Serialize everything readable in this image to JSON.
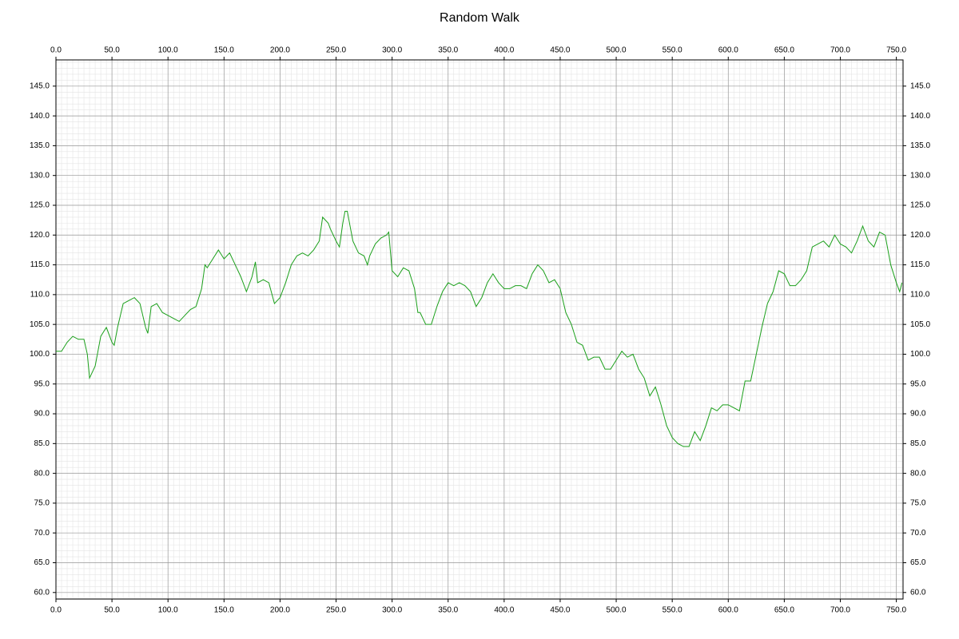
{
  "chart_data": {
    "type": "line",
    "title": "Random Walk",
    "x": [
      0,
      5,
      10,
      15,
      20,
      25,
      28,
      30,
      35,
      40,
      45,
      50,
      52,
      55,
      60,
      65,
      70,
      75,
      80,
      82,
      85,
      90,
      95,
      100,
      105,
      110,
      115,
      120,
      125,
      130,
      133,
      135,
      140,
      145,
      150,
      155,
      160,
      165,
      170,
      175,
      178,
      180,
      185,
      190,
      195,
      200,
      205,
      210,
      215,
      220,
      225,
      230,
      235,
      238,
      243,
      245,
      250,
      253,
      256,
      258,
      260,
      263,
      265,
      270,
      275,
      278,
      280,
      285,
      290,
      295,
      297,
      300,
      305,
      310,
      315,
      320,
      323,
      325,
      330,
      335,
      340,
      345,
      350,
      355,
      360,
      365,
      370,
      375,
      380,
      385,
      390,
      395,
      400,
      405,
      410,
      415,
      420,
      425,
      430,
      435,
      440,
      445,
      450,
      455,
      460,
      465,
      470,
      475,
      480,
      485,
      490,
      495,
      500,
      505,
      510,
      515,
      520,
      525,
      530,
      535,
      540,
      545,
      550,
      555,
      560,
      565,
      570,
      575,
      580,
      585,
      590,
      595,
      600,
      605,
      610,
      615,
      620,
      625,
      630,
      635,
      640,
      645,
      650,
      655,
      660,
      665,
      670,
      675,
      680,
      685,
      690,
      695,
      700,
      705,
      710,
      715,
      720,
      725,
      730,
      735,
      740,
      745,
      750,
      753,
      755
    ],
    "series": [
      {
        "name": "Random Walk",
        "color": "#1a9f1a",
        "values": [
          100.5,
          100.5,
          102,
          103,
          102.5,
          102.5,
          100,
          96,
          98,
          103,
          104.5,
          102,
          101.5,
          104.5,
          108.5,
          109,
          109.5,
          108.5,
          104.5,
          103.5,
          108,
          108.5,
          107,
          106.5,
          106,
          105.5,
          106.5,
          107.5,
          108,
          111,
          115,
          114.5,
          116,
          117.5,
          116,
          117,
          115,
          113,
          110.5,
          113,
          115.5,
          112,
          112.5,
          112,
          108.5,
          109.5,
          112,
          115,
          116.5,
          117,
          116.5,
          117.5,
          119,
          123,
          122,
          121,
          119,
          118,
          122,
          124,
          124,
          121,
          119,
          117,
          116.5,
          115,
          116.5,
          118.5,
          119.5,
          120,
          120.5,
          114,
          113,
          114.5,
          114,
          111,
          107,
          107,
          105,
          105,
          108,
          110.5,
          112,
          111.5,
          112,
          111.5,
          110.5,
          108,
          109.5,
          112,
          113.5,
          112,
          111,
          111,
          111.5,
          111.5,
          111,
          113.5,
          115,
          114,
          112,
          112.5,
          111,
          107,
          105,
          102,
          101.5,
          99,
          99.5,
          99.5,
          97.5,
          97.5,
          99,
          100.5,
          99.5,
          100,
          97.5,
          96,
          93,
          94.5,
          91.5,
          88,
          86,
          85,
          84.5,
          84.5,
          87,
          85.5,
          88,
          91,
          90.5,
          91.5,
          91.5,
          91,
          90.5,
          95.5,
          95.5,
          100,
          104.5,
          108.5,
          110.5,
          114,
          113.5,
          111.5,
          111.5,
          112.5,
          114,
          118,
          118.5,
          119,
          118,
          120,
          118.5,
          118,
          117,
          119,
          121.5,
          119,
          118,
          120.5,
          120,
          115,
          112,
          110.5,
          112
        ]
      }
    ],
    "xlim": [
      0,
      756
    ],
    "ylim": [
      58.9,
      149.4
    ],
    "xticks": [
      {
        "value": 0,
        "label": "0.0"
      },
      {
        "value": 50,
        "label": "50.0"
      },
      {
        "value": 100,
        "label": "100.0"
      },
      {
        "value": 150,
        "label": "150.0"
      },
      {
        "value": 200,
        "label": "200.0"
      },
      {
        "value": 250,
        "label": "250.0"
      },
      {
        "value": 300,
        "label": "300.0"
      },
      {
        "value": 350,
        "label": "350.0"
      },
      {
        "value": 400,
        "label": "400.0"
      },
      {
        "value": 450,
        "label": "450.0"
      },
      {
        "value": 500,
        "label": "500.0"
      },
      {
        "value": 550,
        "label": "550.0"
      },
      {
        "value": 600,
        "label": "600.0"
      },
      {
        "value": 650,
        "label": "650.0"
      },
      {
        "value": 700,
        "label": "700.0"
      },
      {
        "value": 750,
        "label": "750.0"
      }
    ],
    "yticks": [
      {
        "value": 60,
        "label": "60.0"
      },
      {
        "value": 65,
        "label": "65.0"
      },
      {
        "value": 70,
        "label": "70.0"
      },
      {
        "value": 75,
        "label": "75.0"
      },
      {
        "value": 80,
        "label": "80.0"
      },
      {
        "value": 85,
        "label": "85.0"
      },
      {
        "value": 90,
        "label": "90.0"
      },
      {
        "value": 95,
        "label": "95.0"
      },
      {
        "value": 100,
        "label": "100.0"
      },
      {
        "value": 105,
        "label": "105.0"
      },
      {
        "value": 110,
        "label": "110.0"
      },
      {
        "value": 115,
        "label": "115.0"
      },
      {
        "value": 120,
        "label": "120.0"
      },
      {
        "value": 125,
        "label": "125.0"
      },
      {
        "value": 130,
        "label": "130.0"
      },
      {
        "value": 135,
        "label": "135.0"
      },
      {
        "value": 140,
        "label": "140.0"
      },
      {
        "value": 145,
        "label": "145.0"
      }
    ],
    "grid": true
  }
}
